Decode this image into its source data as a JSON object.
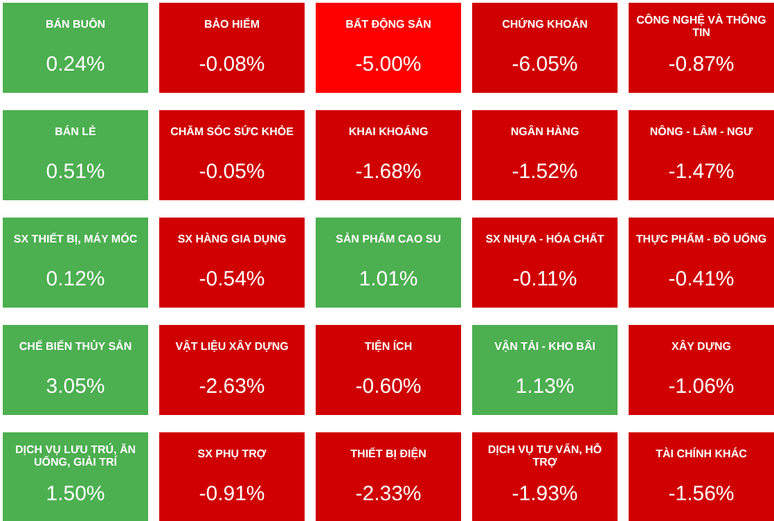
{
  "chart_data": {
    "type": "other",
    "categories": [
      "BÁN BUÔN",
      "BẢO HIỂM",
      "BẤT ĐỘNG SẢN",
      "CHỨNG KHOÁN",
      "CÔNG NGHỆ VÀ THÔNG TIN",
      "BÁN LẺ",
      "CHĂM SÓC SỨC KHỎE",
      "KHAI KHOÁNG",
      "NGÂN HÀNG",
      "NÔNG - LÂM - NGƯ",
      "SX THIẾT BỊ, MÁY MÓC",
      "SX HÀNG GIA DỤNG",
      "SẢN PHẨM CAO SU",
      "SX NHỰA - HÓA CHẤT",
      "THỰC PHẨM - ĐỒ UỐNG",
      "CHẾ BIẾN THỦY SẢN",
      "VẬT LIỆU XÂY DỰNG",
      "TIỆN ÍCH",
      "VẬN TẢI - KHO BÃI",
      "XÂY DỰNG",
      "DỊCH VỤ LƯU TRÚ, ĂN UỐNG, GIẢI TRÍ",
      "SX PHỤ TRỢ",
      "THIẾT BỊ ĐIỆN",
      "DỊCH VỤ TƯ VẤN, HỖ TRỢ",
      "TÀI CHÍNH KHÁC"
    ],
    "values": [
      0.24,
      -0.08,
      -5.0,
      -6.05,
      -0.87,
      0.51,
      -0.05,
      -1.68,
      -1.52,
      -1.47,
      0.12,
      -0.54,
      1.01,
      -0.11,
      -0.41,
      3.05,
      -2.63,
      -0.6,
      1.13,
      -1.06,
      1.5,
      -0.91,
      -2.33,
      -1.93,
      -1.56
    ],
    "value_labels": [
      "0.24%",
      "-0.08%",
      "-5.00%",
      "-6.05%",
      "-0.87%",
      "0.51%",
      "-0.05%",
      "-1.68%",
      "-1.52%",
      "-1.47%",
      "0.12%",
      "-0.54%",
      "1.01%",
      "-0.11%",
      "-0.41%",
      "3.05%",
      "-2.63%",
      "-0.60%",
      "1.13%",
      "-1.06%",
      "1.50%",
      "-0.91%",
      "-2.33%",
      "-1.93%",
      "-1.56%"
    ],
    "colors": [
      "#4caf50",
      "#d00000",
      "#ff0000",
      "#d00000",
      "#d00000",
      "#4caf50",
      "#d00000",
      "#d00000",
      "#d00000",
      "#d00000",
      "#4caf50",
      "#d00000",
      "#4caf50",
      "#d00000",
      "#d00000",
      "#4caf50",
      "#d00000",
      "#d00000",
      "#4caf50",
      "#d00000",
      "#4caf50",
      "#d00000",
      "#d00000",
      "#d00000",
      "#d00000"
    ]
  }
}
